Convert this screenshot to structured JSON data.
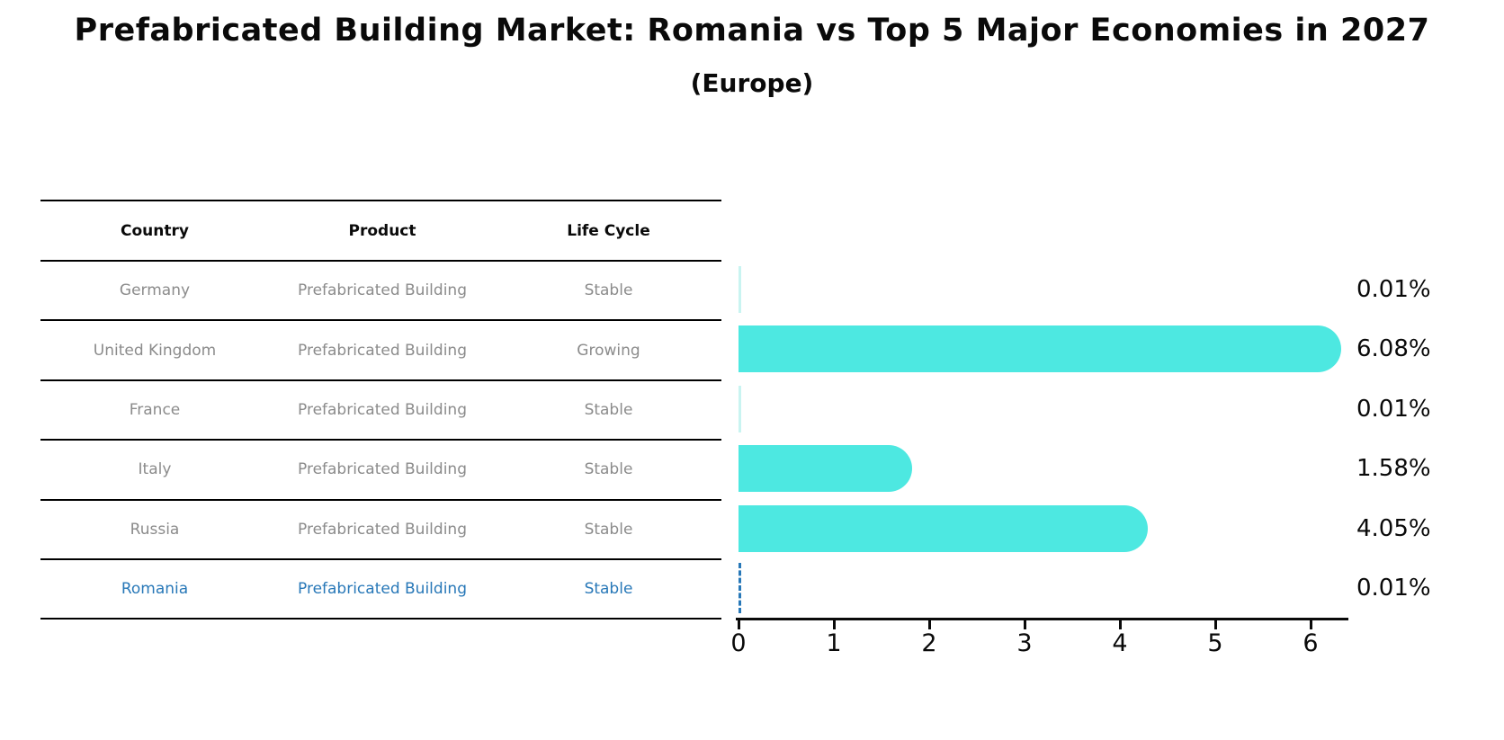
{
  "title": "Prefabricated Building Market: Romania vs Top 5 Major Economies in 2027",
  "subtitle": "(Europe)",
  "table": {
    "headers": {
      "country": "Country",
      "product": "Product",
      "life_cycle": "Life Cycle"
    }
  },
  "rows": [
    {
      "country": "Germany",
      "product": "Prefabricated Building",
      "life_cycle": "Stable",
      "value": 0.01,
      "label": "0.01%",
      "highlight": false
    },
    {
      "country": "United Kingdom",
      "product": "Prefabricated Building",
      "life_cycle": "Growing",
      "value": 6.08,
      "label": "6.08%",
      "highlight": false
    },
    {
      "country": "France",
      "product": "Prefabricated Building",
      "life_cycle": "Stable",
      "value": 0.01,
      "label": "0.01%",
      "highlight": false
    },
    {
      "country": "Italy",
      "product": "Prefabricated Building",
      "life_cycle": "Stable",
      "value": 1.58,
      "label": "1.58%",
      "highlight": false
    },
    {
      "country": "Russia",
      "product": "Prefabricated Building",
      "life_cycle": "Stable",
      "value": 4.05,
      "label": "4.05%",
      "highlight": false
    },
    {
      "country": "Romania",
      "product": "Prefabricated Building",
      "life_cycle": "Stable",
      "value": 0.01,
      "label": "0.01%",
      "highlight": true
    }
  ],
  "chart_data": {
    "type": "bar",
    "orientation": "horizontal",
    "title": "Prefabricated Building Market: Romania vs Top 5 Major Economies in 2027",
    "subtitle": "(Europe)",
    "categories": [
      "Germany",
      "United Kingdom",
      "France",
      "Italy",
      "Russia",
      "Romania"
    ],
    "values": [
      0.01,
      6.08,
      0.01,
      1.58,
      4.05,
      0.01
    ],
    "value_labels": [
      "0.01%",
      "6.08%",
      "0.01%",
      "1.58%",
      "4.05%",
      "0.01%"
    ],
    "xlabel": "",
    "ylabel": "",
    "x_ticks": [
      0,
      1,
      2,
      3,
      4,
      5,
      6
    ],
    "xlim": [
      0,
      6.5
    ],
    "grid": false,
    "legend": false,
    "highlight_category": "Romania",
    "annotations": "Romania bar drawn as dashed outline; values shown as right-side labels"
  },
  "colors": {
    "bar-color": "#4DE8E1",
    "bar-faint": "#C9F4F1",
    "highlight": "#2878B8",
    "text-gray": "#8b8b8b"
  }
}
